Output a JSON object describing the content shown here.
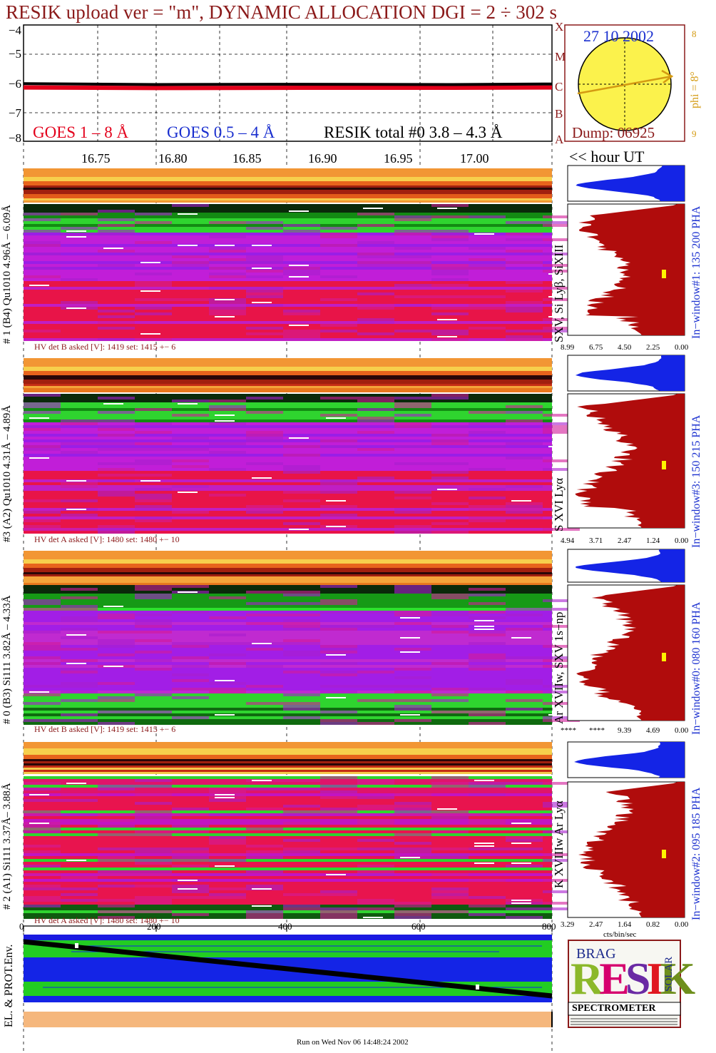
{
  "header": {
    "title": "RESIK upload ver = \"m\", DYNAMIC ALLOCATION  DGI =   2 ÷ 302 s"
  },
  "goes": {
    "yticks": [
      "−4",
      "−5",
      "−6",
      "−7",
      "−8"
    ],
    "legend_red": "GOES 1 – 8 Å",
    "legend_blue": "GOES 0.5 – 4 Å",
    "legend_black": "RESIK total #0  3.8 – 4.3 Å",
    "class_letters": [
      "X",
      "M",
      "C",
      "B",
      "A"
    ],
    "colors": {
      "red": "#e3001b",
      "blue": "#1a2fcf",
      "black": "#000000"
    }
  },
  "sun": {
    "date": "27 10 2002",
    "phi": "phi =  8°",
    "dump": "Dump: 06925",
    "side_top": "8",
    "side_bottom": "9"
  },
  "time_axis": {
    "ticks": [
      "16.75",
      "16.80",
      "16.85",
      "16.90",
      "16.95",
      "17.00"
    ],
    "unit_label": "<< hour UT"
  },
  "channels": [
    {
      "left_label": "# 1 (B4) Qu1010 4.96Å – 6.09Å",
      "line_label": "SXV, Si Lyβ, SiXIII",
      "hv": "HV det B asked [V]:  1419 set:  1415 +−    6",
      "pha": "In−window#1:  135 200 PHA",
      "scale": [
        "8.99",
        "6.75",
        "4.50",
        "2.25",
        "0.00"
      ]
    },
    {
      "left_label": "#3 (A2) Qu1010  4.31Å – 4.89Å",
      "line_label": "S XVI Lyα",
      "hv": "HV det A asked [V]:  1480 set:  1480 +−    10",
      "pha": "In−window#3:  150 215 PHA",
      "scale": [
        "4.94",
        "3.71",
        "2.47",
        "1.24",
        "0.00"
      ]
    },
    {
      "left_label": "# 0 (B3) Si111  3.82Å – 4.33Å",
      "line_label": "Ar XVIIw, SXV 1s−np",
      "hv": "HV det B asked [V]:  1419 set:  1415 +−    6",
      "pha": "In−window#0:  080 160 PHA",
      "scale": [
        "****",
        "****",
        "9.39",
        "4.69",
        "0.00"
      ]
    },
    {
      "left_label": "# 2 (A1) Si111  3.37Å– 3.88Å",
      "line_label": "K XVIIIw  Ar Lyα",
      "hv": "HV det A asked [V]:  1480 set:  1480 +−    10",
      "pha": "In−window#2:  095 185 PHA",
      "scale": [
        "3.29",
        "2.47",
        "1.64",
        "0.82",
        "0.00"
      ]
    }
  ],
  "bottom_axis": {
    "ticks": [
      "0",
      "200",
      "400",
      "600",
      "800"
    ],
    "cts_label": "cts/bin/sec"
  },
  "env": {
    "label": "EL. & PROT.Env."
  },
  "logo": {
    "big_letters": "RESIK",
    "small": "BRAG",
    "solar": "SOLAR",
    "caption": "SPECTROMETER"
  },
  "footer": {
    "run": "Run on Wed Nov 06 14:48:24 2002"
  },
  "chart_data": [
    {
      "type": "line",
      "title": "RESIK upload ver = \"m\", DYNAMIC ALLOCATION  DGI =   2 ÷ 302 s",
      "xlabel": "<< hour UT",
      "ylabel": "",
      "x_ticks": [
        16.75,
        16.8,
        16.85,
        16.9,
        16.95,
        17.0
      ],
      "xlim": [
        16.71,
        17.07
      ],
      "ylim": [
        -8,
        -4
      ],
      "grid": true,
      "series": [
        {
          "name": "GOES 1 – 8 Å",
          "color": "#e3001b",
          "x": [
            16.71,
            16.8,
            16.9,
            17.0,
            17.07
          ],
          "values": [
            -6.15,
            -6.17,
            -6.16,
            -6.16,
            -6.15
          ]
        },
        {
          "name": "RESIK total #0  3.8 – 4.3 Å",
          "color": "#000000",
          "x": [
            16.71,
            16.8,
            16.9,
            17.0,
            17.07
          ],
          "values": [
            -6.02,
            -6.05,
            -6.04,
            -6.05,
            -6.03
          ]
        }
      ]
    },
    {
      "type": "heatmap",
      "title": "# 1 (B4) Qu1010 4.96Å – 6.09Å",
      "xlabel": "hour UT",
      "xlim": [
        16.71,
        17.07
      ]
    },
    {
      "type": "heatmap",
      "title": "#3 (A2) Qu1010  4.31Å – 4.89Å",
      "xlabel": "hour UT",
      "xlim": [
        16.71,
        17.07
      ]
    },
    {
      "type": "heatmap",
      "title": "# 0 (B3) Si111  3.82Å – 4.33Å",
      "xlabel": "hour UT",
      "xlim": [
        16.71,
        17.07
      ]
    },
    {
      "type": "heatmap",
      "title": "# 2 (A1) Si111  3.37Å– 3.88Å",
      "xlabel": "",
      "x_ticks": [
        0,
        200,
        400,
        600,
        800
      ],
      "xlim": [
        0,
        800
      ]
    },
    {
      "type": "area",
      "title": "In−window#1:  135 200 PHA",
      "xlabel": "",
      "xlim": [
        8.99,
        0.0
      ],
      "x_ticks": [
        8.99,
        6.75,
        4.5,
        2.25,
        0.0
      ]
    },
    {
      "type": "area",
      "title": "In−window#3:  150 215 PHA",
      "xlim": [
        4.94,
        0.0
      ],
      "x_ticks": [
        4.94,
        3.71,
        2.47,
        1.24,
        0.0
      ]
    },
    {
      "type": "area",
      "title": "In−window#0:  080 160 PHA",
      "xlim": [
        14.08,
        0.0
      ],
      "x_ticks": [
        9.39,
        4.69,
        0.0
      ]
    },
    {
      "type": "area",
      "title": "In−window#2:  095 185 PHA",
      "xlabel": "cts/bin/sec",
      "xlim": [
        3.29,
        0.0
      ],
      "x_ticks": [
        3.29,
        2.47,
        1.64,
        0.82,
        0.0
      ]
    }
  ]
}
